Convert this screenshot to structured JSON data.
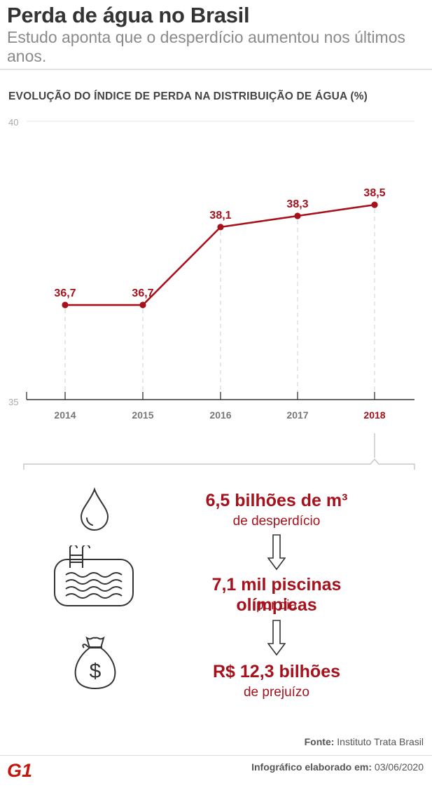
{
  "header": {
    "title": "Perda de água no Brasil",
    "subtitle": "Estudo aponta que o desperdício aumentou nos últimos anos."
  },
  "chart_data": {
    "type": "line",
    "title": "EVOLUÇÃO DO ÍNDICE DE PERDA NA DISTRIBUIÇÃO DE ÁGUA (%)",
    "categories": [
      "2014",
      "2015",
      "2016",
      "2017",
      "2018"
    ],
    "series": [
      {
        "values": [
          36.7,
          36.7,
          38.1,
          38.3,
          38.5
        ]
      }
    ],
    "data_labels": [
      "36,7",
      "36,7",
      "38,1",
      "38,3",
      "38,5"
    ],
    "ylim": [
      35,
      40
    ],
    "y_ticks": [
      "35",
      "40"
    ],
    "highlight_category": "2018",
    "grid": true,
    "color": "#a6111b"
  },
  "stats": [
    {
      "value": "6,5 bilhões de m³",
      "desc": "de desperdício",
      "icon": "water-drop-icon"
    },
    {
      "value": "7,1 mil piscinas olímpicas",
      "desc": "por dia",
      "icon": "swimming-pool-icon"
    },
    {
      "value": "R$ 12,3 bilhões",
      "desc": "de prejuízo",
      "icon": "money-bag-icon"
    }
  ],
  "footer": {
    "source_label": "Fonte:",
    "source_value": "Instituto Trata Brasil",
    "credit_label": "Infográfico elaborado em:",
    "credit_date": "03/06/2020",
    "logo_text": "G1"
  }
}
